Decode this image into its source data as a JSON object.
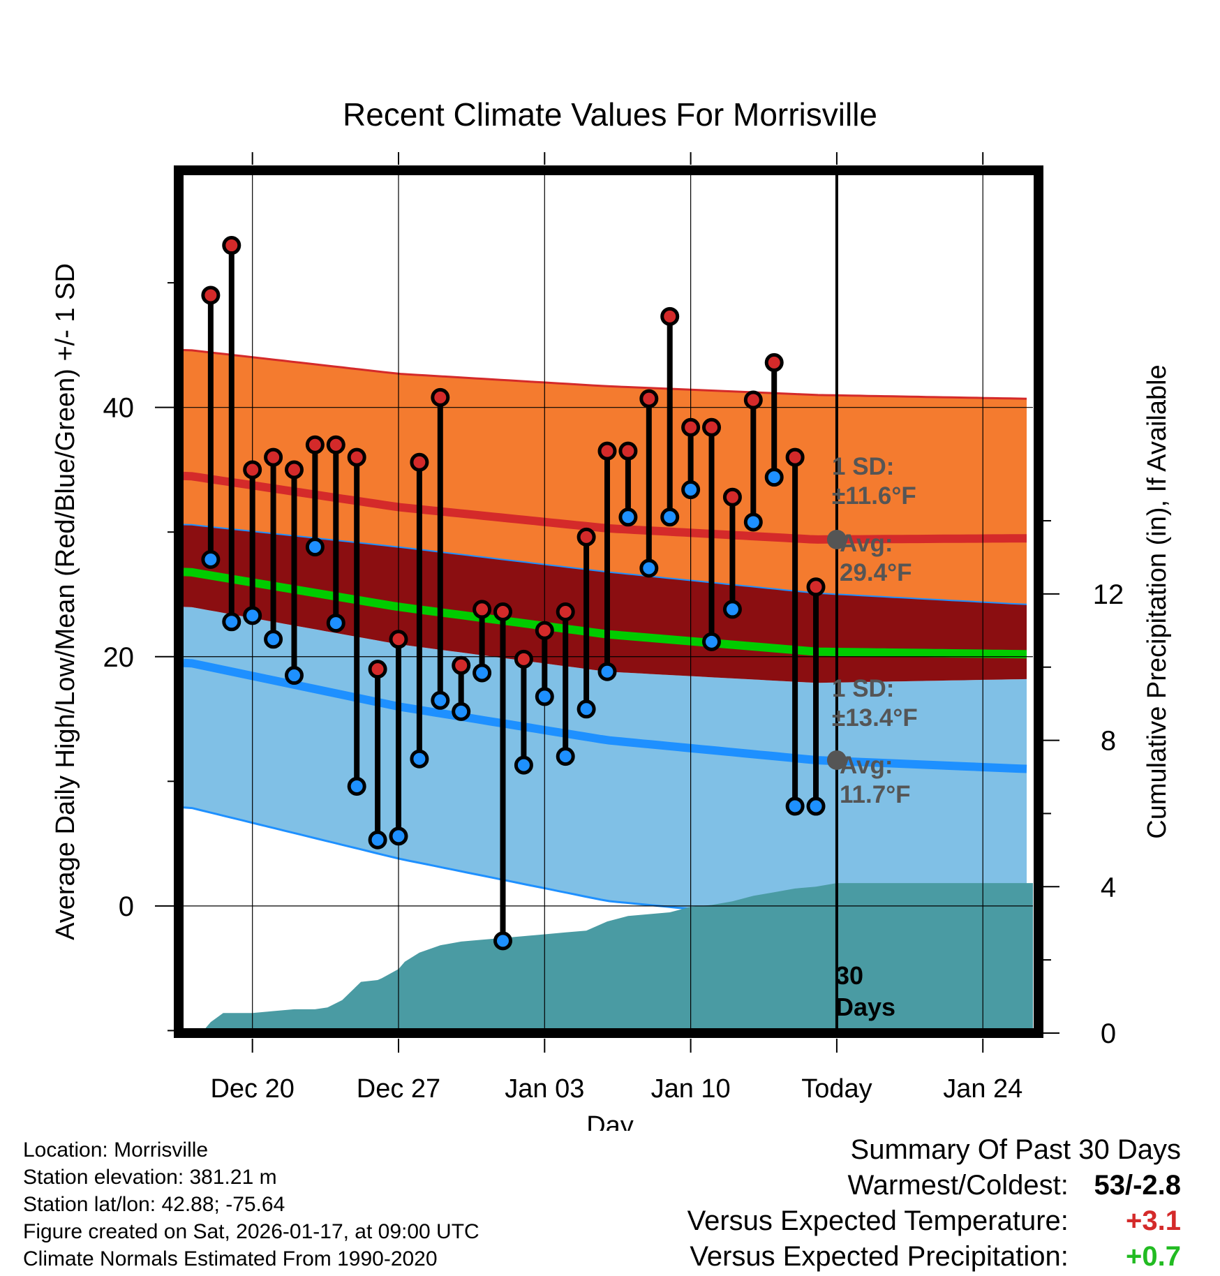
{
  "chart_data": {
    "type": "line",
    "title": "Recent Climate Values For Morrisville",
    "xlabel": "Day",
    "ylabel": "Average Daily High/Low/Mean (Red/Blue/Green) +/- 1 SD",
    "y2label": "Cumulative Precipitation (in), If Available",
    "x_tick_labels": [
      "Dec 20",
      "Dec 27",
      "Jan 03",
      "Jan 10",
      "Today",
      "Jan 24"
    ],
    "x_tick_days": [
      3,
      10,
      17,
      24,
      31,
      38
    ],
    "xlim": [
      -0.3,
      40.4
    ],
    "ylim": [
      -10.2,
      58.8
    ],
    "y_ticks": [
      0,
      20,
      40
    ],
    "y2lim": [
      0,
      23.5
    ],
    "y2_ticks": [
      0,
      4,
      8,
      12
    ],
    "today_day": 31,
    "normals": {
      "days": [
        0,
        10,
        20,
        30,
        40
      ],
      "high_mean": [
        34.5,
        32.0,
        30.3,
        29.4,
        29.5
      ],
      "high_sd_upper": [
        44.6,
        42.7,
        41.7,
        41.0,
        40.7
      ],
      "high_sd_lower": [
        30.6,
        28.8,
        26.8,
        25.1,
        24.2
      ],
      "mean": [
        26.8,
        24.0,
        21.8,
        20.4,
        20.2
      ],
      "low_mean": [
        19.5,
        16.0,
        13.3,
        11.7,
        11.0
      ],
      "low_sd_upper": [
        24.0,
        21.0,
        18.8,
        17.9,
        18.2
      ],
      "low_sd_lower": [
        7.9,
        3.8,
        0.4,
        -1.2,
        -1.2
      ]
    },
    "series": [
      {
        "name": "Daily High",
        "color": "#d42a2a",
        "days": [
          1,
          2,
          3,
          4,
          5,
          6,
          7,
          8,
          9,
          10,
          11,
          12,
          13,
          14,
          15,
          16,
          17,
          18,
          19,
          20,
          21,
          22,
          23,
          24,
          25,
          26,
          27,
          28,
          29,
          30
        ],
        "values": [
          49,
          53,
          35,
          36,
          35,
          37,
          37,
          36,
          19,
          21.4,
          35.6,
          40.8,
          19.3,
          23.8,
          23.6,
          19.8,
          22.1,
          23.6,
          29.6,
          36.5,
          36.5,
          40.7,
          47.3,
          38.4,
          38.4,
          32.8,
          40.6,
          43.6,
          36,
          25.6
        ]
      },
      {
        "name": "Daily Low",
        "color": "#1e90ff",
        "days": [
          1,
          2,
          3,
          4,
          5,
          6,
          7,
          8,
          9,
          10,
          11,
          12,
          13,
          14,
          15,
          16,
          17,
          18,
          19,
          20,
          21,
          22,
          23,
          24,
          25,
          26,
          27,
          28,
          29,
          30
        ],
        "values": [
          27.8,
          22.8,
          23.3,
          21.4,
          18.5,
          28.8,
          22.7,
          9.6,
          5.3,
          5.6,
          11.8,
          16.5,
          15.6,
          18.7,
          -2.8,
          11.3,
          16.8,
          12,
          15.8,
          18.8,
          31.2,
          27.1,
          31.2,
          33.4,
          21.2,
          23.8,
          30.8,
          34.4,
          8,
          8
        ]
      },
      {
        "name": "Cumulative Precipitation",
        "color": "#4a9ba3",
        "days": [
          0.55,
          1.0,
          1.6,
          2.0,
          3.0,
          4.0,
          5.0,
          6.0,
          6.6,
          7.3,
          8.2,
          9.0,
          9.2,
          10.0,
          10.3,
          11.0,
          12.0,
          13.0,
          14.0,
          15.0,
          16.0,
          17.0,
          18.0,
          19.0,
          20.0,
          21.0,
          22.0,
          23.0,
          24.0,
          25.0,
          26.0,
          27.0,
          28.0,
          29.0,
          30.0,
          31.0,
          40.4
        ],
        "values": [
          0,
          0.3,
          0.55,
          0.55,
          0.55,
          0.6,
          0.65,
          0.65,
          0.7,
          0.9,
          1.4,
          1.45,
          1.5,
          1.75,
          1.95,
          2.2,
          2.4,
          2.5,
          2.55,
          2.6,
          2.65,
          2.7,
          2.75,
          2.8,
          3.05,
          3.2,
          3.25,
          3.3,
          3.45,
          3.5,
          3.6,
          3.75,
          3.85,
          3.95,
          4.0,
          4.1,
          4.1
        ]
      }
    ],
    "annotations": {
      "high_sd_label": "1 SD:",
      "high_sd_value": "±11.6°F",
      "high_avg_label": "Avg:",
      "high_avg_value": "29.4°F",
      "low_sd_label": "1 SD:",
      "low_sd_value": "±13.4°F",
      "low_avg_label": "Avg:",
      "low_avg_value": "11.7°F",
      "days_count": "30",
      "days_word": "Days"
    },
    "colors": {
      "high_band": "#f47b2f",
      "overlap_band": "#8b0e11",
      "low_band": "#80c0e6",
      "high_line": "#d42a2a",
      "low_line": "#1e90ff",
      "mean_line": "#00cc00",
      "precip": "#4a9ba3",
      "annotation": "#555555"
    }
  },
  "footer": {
    "location": "Location: Morrisville",
    "elevation": "Station elevation: 381.21 m",
    "latlon": "Station lat/lon: 42.88; -75.64",
    "created": "Figure created on Sat, 2026-01-17, at 09:00 UTC",
    "normals": "Climate Normals Estimated From 1990-2020"
  },
  "summary": {
    "title": "Summary Of Past 30 Days",
    "warmest_coldest_label": "Warmest/Coldest:",
    "warmest_coldest_value": "53/-2.8",
    "temp_label": "Versus Expected Temperature:",
    "temp_value": "+3.1",
    "temp_color": "#d42a2a",
    "precip_label": "Versus Expected Precipitation:",
    "precip_value": "+0.7",
    "precip_color": "#22bb22"
  }
}
